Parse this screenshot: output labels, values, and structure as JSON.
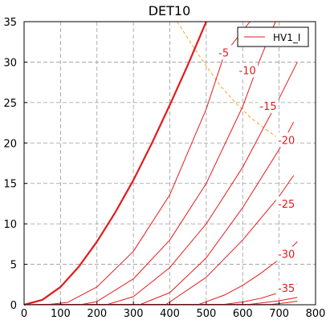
{
  "chart_data": {
    "type": "line",
    "title": "DET10",
    "xlabel": "",
    "ylabel": "",
    "xlim": [
      0,
      800
    ],
    "ylim": [
      0,
      35
    ],
    "x_ticks": [
      0,
      100,
      200,
      300,
      400,
      500,
      600,
      700,
      800
    ],
    "y_ticks": [
      0,
      5,
      10,
      15,
      20,
      25,
      30,
      35
    ],
    "grid": true,
    "legend": {
      "position": "top-right",
      "entries": [
        "HV1_I"
      ]
    },
    "series_color": "#e41a1c",
    "envelope_color": "#f5a623",
    "series": [
      {
        "name": "HV1_I",
        "bold": true,
        "x": [
          0,
          50,
          100,
          150,
          200,
          250,
          300,
          350,
          400,
          450,
          500
        ],
        "y": [
          0,
          0.6,
          2.2,
          4.7,
          7.8,
          11.4,
          15.4,
          19.9,
          24.7,
          29.7,
          35
        ]
      },
      {
        "label": "-5",
        "x": [
          0,
          70,
          120,
          200,
          300,
          400,
          500,
          550,
          620
        ],
        "y": [
          0,
          0.05,
          0.3,
          2.2,
          6.6,
          13.6,
          24.2,
          31.0,
          35
        ]
      },
      {
        "label": "-10",
        "x": [
          0,
          160,
          200,
          300,
          400,
          500,
          600,
          650,
          690
        ],
        "y": [
          0,
          0.05,
          0.4,
          3.2,
          8.0,
          15.0,
          24.5,
          30.6,
          35
        ]
      },
      {
        "label": "-15",
        "x": [
          0,
          230,
          300,
          400,
          500,
          600,
          700,
          750
        ],
        "y": [
          0,
          0.05,
          1.0,
          4.6,
          10.0,
          17.0,
          25.5,
          30.0
        ]
      },
      {
        "label": "-20",
        "x": [
          0,
          320,
          400,
          500,
          600,
          700,
          740
        ],
        "y": [
          0,
          0.05,
          1.5,
          5.8,
          12.0,
          19.2,
          22.6
        ]
      },
      {
        "label": "-25",
        "x": [
          0,
          390,
          500,
          600,
          700,
          740
        ],
        "y": [
          0,
          0.05,
          3.4,
          8.0,
          13.4,
          16.0
        ]
      },
      {
        "label": "-30",
        "x": [
          0,
          480,
          550,
          600,
          650,
          700,
          750
        ],
        "y": [
          0,
          0.05,
          1.2,
          2.4,
          3.9,
          5.6,
          7.8
        ]
      },
      {
        "label": "-35",
        "x": [
          0,
          550,
          600,
          650,
          700,
          750
        ],
        "y": [
          0,
          0.05,
          0.35,
          0.8,
          1.5,
          2.6
        ]
      },
      {
        "label": "",
        "x": [
          0,
          620,
          700,
          750
        ],
        "y": [
          0,
          0.05,
          0.5,
          0.9
        ]
      },
      {
        "label": "",
        "x": [
          0,
          680,
          720,
          750
        ],
        "y": [
          0,
          0.05,
          0.25,
          0.45
        ]
      }
    ],
    "envelope": {
      "x": [
        420,
        460,
        500,
        540,
        580,
        620,
        660,
        700
      ],
      "y": [
        35,
        32.2,
        29.5,
        27.0,
        25.0,
        23.2,
        21.8,
        20.5
      ]
    },
    "annotations": [
      {
        "text": "-5",
        "x": 548,
        "y": 31.2
      },
      {
        "text": "-10",
        "x": 613,
        "y": 29.0
      },
      {
        "text": "-15",
        "x": 670,
        "y": 24.6
      },
      {
        "text": "-20",
        "x": 720,
        "y": 20.4
      },
      {
        "text": "-25",
        "x": 720,
        "y": 12.5
      },
      {
        "text": "-30",
        "x": 720,
        "y": 6.3
      },
      {
        "text": "-35",
        "x": 720,
        "y": 2.1
      }
    ]
  }
}
